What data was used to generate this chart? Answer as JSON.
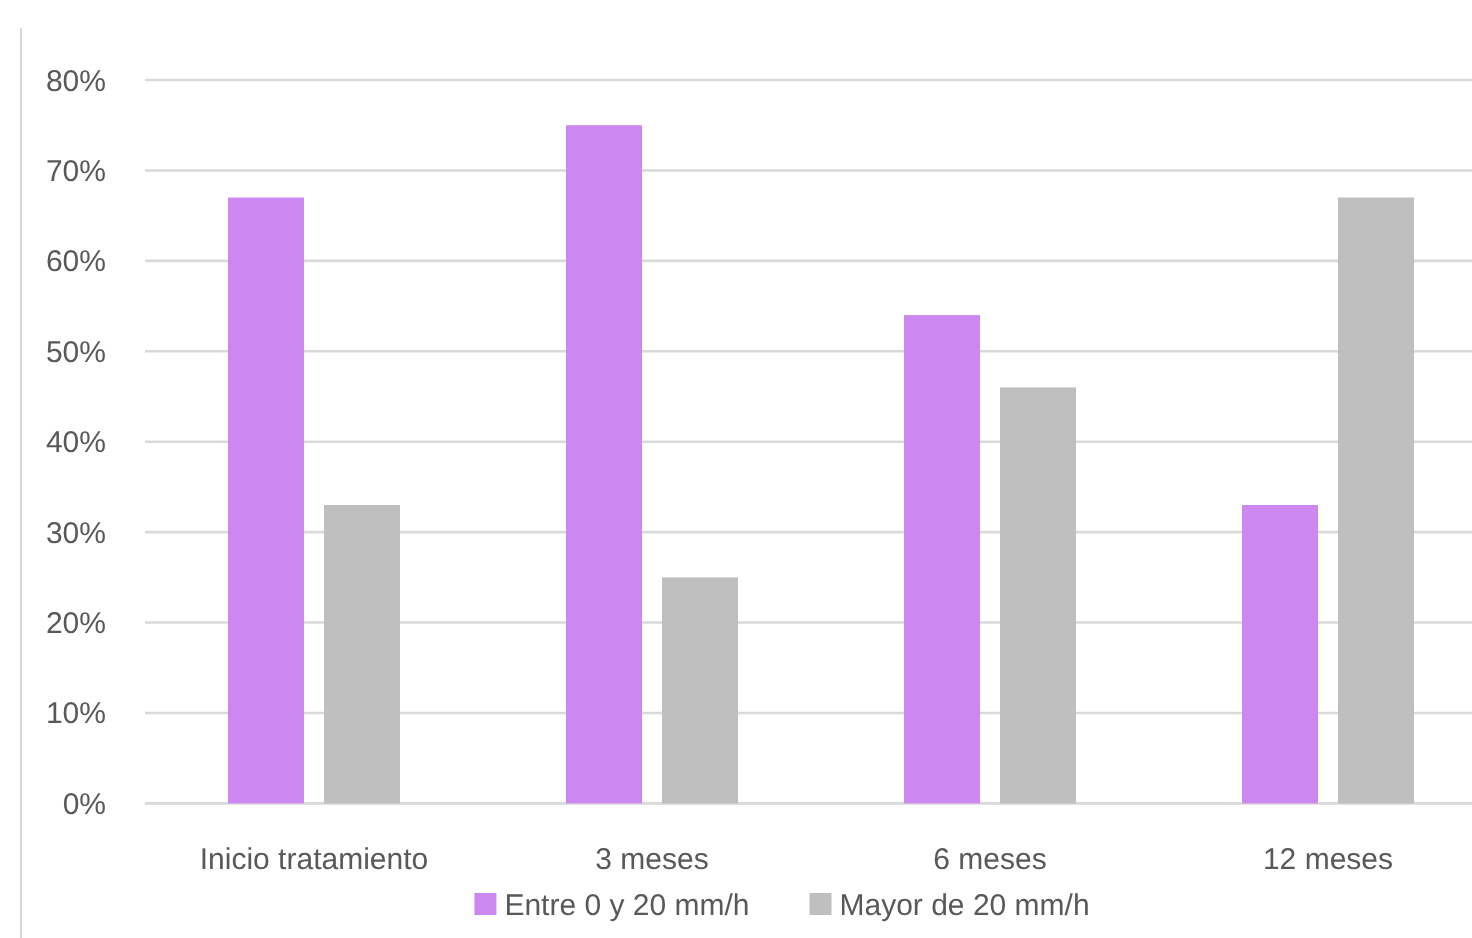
{
  "chart_data": {
    "type": "bar",
    "categories": [
      "Inicio tratamiento",
      "3 meses",
      "6 meses",
      "12 meses"
    ],
    "series": [
      {
        "name": "Entre 0 y 20 mm/h",
        "color": "#cc88f0",
        "values": [
          67,
          75,
          54,
          33
        ]
      },
      {
        "name": "Mayor de 20 mm/h",
        "color": "#bfbfbf",
        "values": [
          33,
          25,
          46,
          67
        ]
      }
    ],
    "ylim": [
      0,
      80
    ],
    "yticks": [
      {
        "value": 0,
        "label": "0%"
      },
      {
        "value": 10,
        "label": "10%"
      },
      {
        "value": 20,
        "label": "20%"
      },
      {
        "value": 30,
        "label": "30%"
      },
      {
        "value": 40,
        "label": "40%"
      },
      {
        "value": 50,
        "label": "50%"
      },
      {
        "value": 60,
        "label": "60%"
      },
      {
        "value": 70,
        "label": "70%"
      },
      {
        "value": 80,
        "label": "80%"
      }
    ],
    "grid": "y",
    "legend": "bottom"
  }
}
